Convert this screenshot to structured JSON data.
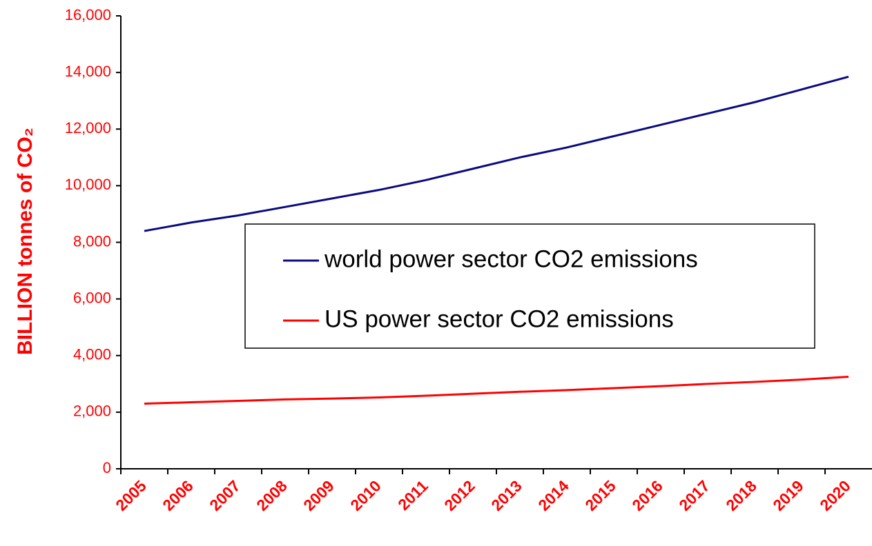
{
  "chart_data": {
    "type": "line",
    "y_label": "BILLION tonnes of CO₂",
    "categories": [
      "2005",
      "2006",
      "2007",
      "2008",
      "2009",
      "2010",
      "2011",
      "2012",
      "2013",
      "2014",
      "2015",
      "2016",
      "2017",
      "2018",
      "2019",
      "2020"
    ],
    "series": [
      {
        "name": "world power sector CO2 emissions",
        "color": "#0a0a80",
        "values": [
          8400,
          8700,
          8950,
          9250,
          9550,
          9850,
          10200,
          10600,
          11000,
          11350,
          11750,
          12150,
          12550,
          12950,
          13400,
          13850
        ]
      },
      {
        "name": "US power sector CO2 emissions",
        "color": "#ff0000",
        "values": [
          2300,
          2350,
          2400,
          2450,
          2480,
          2520,
          2580,
          2650,
          2720,
          2780,
          2850,
          2920,
          3000,
          3070,
          3150,
          3250
        ]
      }
    ],
    "ylim": [
      0,
      16000
    ],
    "yticks": [
      0,
      {
        "value": 2000,
        "label": "2,000"
      },
      {
        "value": 4000,
        "label": "4,000"
      },
      {
        "value": 6000,
        "label": "6,000"
      },
      {
        "value": 8000,
        "label": "8,000"
      },
      {
        "value": 10000,
        "label": "10,000"
      },
      {
        "value": 12000,
        "label": "12,000"
      },
      {
        "value": 14000,
        "label": "14,000"
      },
      {
        "value": 16000,
        "label": "16,000"
      }
    ],
    "grid": false
  }
}
